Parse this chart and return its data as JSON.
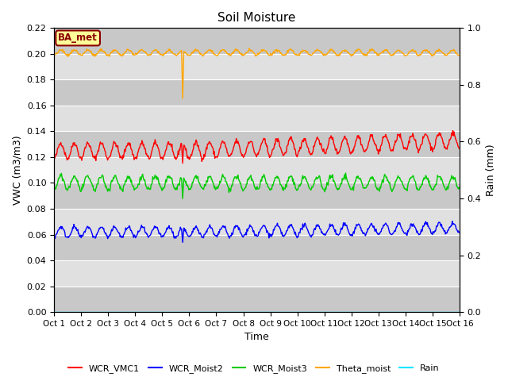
{
  "title": "Soil Moisture",
  "xlabel": "Time",
  "ylabel_left": "VWC (m3/m3)",
  "ylabel_right": "Rain (mm)",
  "ylim_left": [
    0.0,
    0.22
  ],
  "ylim_right": [
    0.0,
    1.0
  ],
  "yticks_left": [
    0.0,
    0.02,
    0.04,
    0.06,
    0.08,
    0.1,
    0.12,
    0.14,
    0.16,
    0.18,
    0.2,
    0.22
  ],
  "yticks_right": [
    0.0,
    0.2,
    0.4,
    0.6,
    0.8,
    1.0
  ],
  "xtick_labels": [
    "Oct 1",
    "Oct 2",
    "Oct 3",
    "Oct 4",
    "Oct 5",
    "Oct 6",
    "Oct 7",
    "Oct 8",
    "Oct 9",
    "Oct 10",
    "Oct 11",
    "Oct 12",
    "Oct 13",
    "Oct 14",
    "Oct 15",
    "Oct 16"
  ],
  "background_color": "#d8d8d8",
  "annotation_text": "BA_met",
  "annotation_bg": "#ffff99",
  "annotation_border": "#8B0000",
  "colors": {
    "WCR_VMC1": "#ff0000",
    "WCR_Moist2": "#0000ff",
    "WCR_Moist3": "#00cc00",
    "Theta_moist": "#ffa500",
    "Rain": "#00e5ff"
  },
  "legend_labels": [
    "WCR_VMC1",
    "WCR_Moist2",
    "WCR_Moist3",
    "Theta_moist",
    "Rain"
  ],
  "figsize": [
    6.4,
    4.8
  ],
  "dpi": 100
}
